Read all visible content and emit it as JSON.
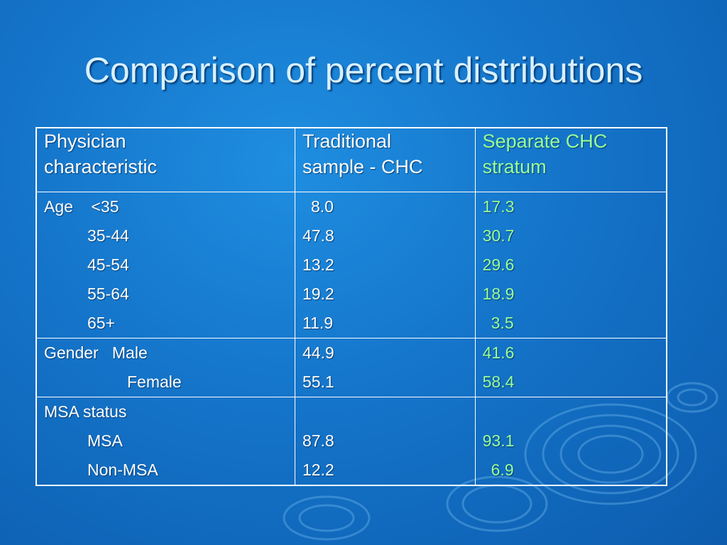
{
  "slide": {
    "title": "Comparison of percent distributions"
  },
  "table": {
    "headers": {
      "c1_line1": "Physician",
      "c1_line2": "characteristic",
      "c2_line1": "Traditional",
      "c2_line2": "sample - CHC",
      "c3_line1": "Separate CHC",
      "c3_line2": "stratum"
    },
    "age": {
      "label": "Age",
      "rows": [
        "<35",
        "35-44",
        "45-54",
        "55-64",
        "65+"
      ],
      "traditional": [
        "8.0",
        "47.8",
        "13.2",
        "19.2",
        "11.9"
      ],
      "separate": [
        "17.3",
        "30.7",
        "29.6",
        "18.9",
        "3.5"
      ]
    },
    "gender": {
      "label": "Gender",
      "rows": [
        "Male",
        "Female"
      ],
      "traditional": [
        "44.9",
        "55.1"
      ],
      "separate": [
        "41.6",
        "58.4"
      ]
    },
    "msa": {
      "label": "MSA status",
      "rows": [
        "MSA",
        "Non-MSA"
      ],
      "traditional": [
        "87.8",
        "12.2"
      ],
      "separate": [
        "93.1",
        "6.9"
      ]
    }
  },
  "colors": {
    "background": "#1474c9",
    "title": "#d8f0ff",
    "separate_column": "#99ff99",
    "table_text": "#ffffff"
  }
}
